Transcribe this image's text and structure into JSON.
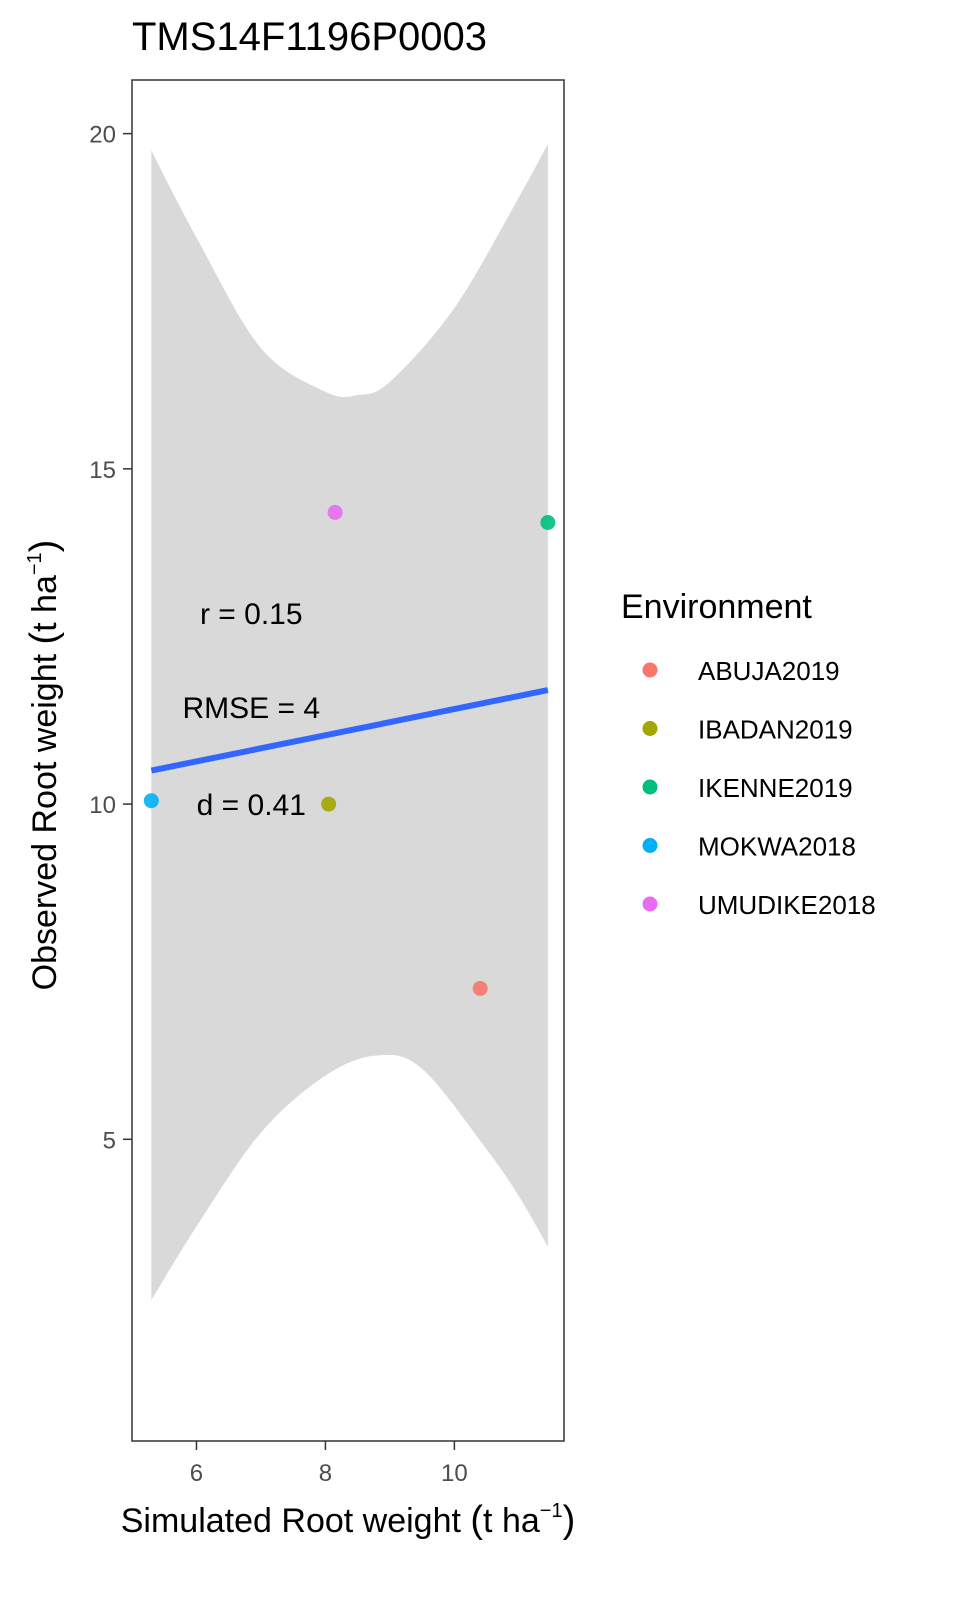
{
  "chart_data": {
    "type": "scatter",
    "title": "TMS14F1196P0003",
    "xlabel": "Simulated Root weight",
    "ylabel": "Observed Root weight",
    "unit": "t ha",
    "unit_exponent": "−1",
    "xlim": [
      5.0,
      11.7
    ],
    "ylim": [
      0.5,
      20.8
    ],
    "x_ticks": [
      6,
      8,
      10
    ],
    "y_ticks": [
      5,
      10,
      15,
      20
    ],
    "grid": false,
    "points": [
      {
        "environment": "ABUJA2019",
        "x": 10.4,
        "y": 7.25
      },
      {
        "environment": "IBADAN2019",
        "x": 8.05,
        "y": 10.0
      },
      {
        "environment": "IKENNE2019",
        "x": 11.45,
        "y": 14.2
      },
      {
        "environment": "MOKWA2018",
        "x": 5.3,
        "y": 10.05
      },
      {
        "environment": "UMUDIKE2018",
        "x": 8.15,
        "y": 14.35
      }
    ],
    "fit_line": {
      "x": [
        5.3,
        11.45
      ],
      "y": [
        10.5,
        11.7
      ],
      "color": "#3366ff"
    },
    "confidence_band": {
      "color": "#d9d9d9",
      "upper": [
        [
          5.3,
          19.75
        ],
        [
          6.0,
          18.45
        ],
        [
          7.0,
          16.8
        ],
        [
          8.0,
          16.15
        ],
        [
          8.5,
          16.1
        ],
        [
          9.0,
          16.3
        ],
        [
          10.0,
          17.4
        ],
        [
          11.0,
          19.05
        ],
        [
          11.45,
          19.85
        ]
      ],
      "lower": [
        [
          5.3,
          2.6
        ],
        [
          6.0,
          3.7
        ],
        [
          7.0,
          5.1
        ],
        [
          8.0,
          5.95
        ],
        [
          8.8,
          6.25
        ],
        [
          9.5,
          6.05
        ],
        [
          10.5,
          4.85
        ],
        [
          11.0,
          4.15
        ],
        [
          11.45,
          3.4
        ]
      ]
    },
    "annotations": [
      {
        "label": "r = 0.15",
        "x": 6.85,
        "y": 12.85
      },
      {
        "label": "RMSE = 4",
        "x": 6.85,
        "y": 11.45
      },
      {
        "label": "d = 0.41",
        "x": 6.85,
        "y": 10.0
      }
    ],
    "legend": {
      "title": "Environment",
      "position": "right",
      "items": [
        {
          "label": "ABUJA2019",
          "color": "#f8766d"
        },
        {
          "label": "IBADAN2019",
          "color": "#a3a500"
        },
        {
          "label": "IKENNE2019",
          "color": "#00bf7d"
        },
        {
          "label": "MOKWA2018",
          "color": "#00b0f6"
        },
        {
          "label": "UMUDIKE2018",
          "color": "#e76bf3"
        }
      ]
    }
  }
}
